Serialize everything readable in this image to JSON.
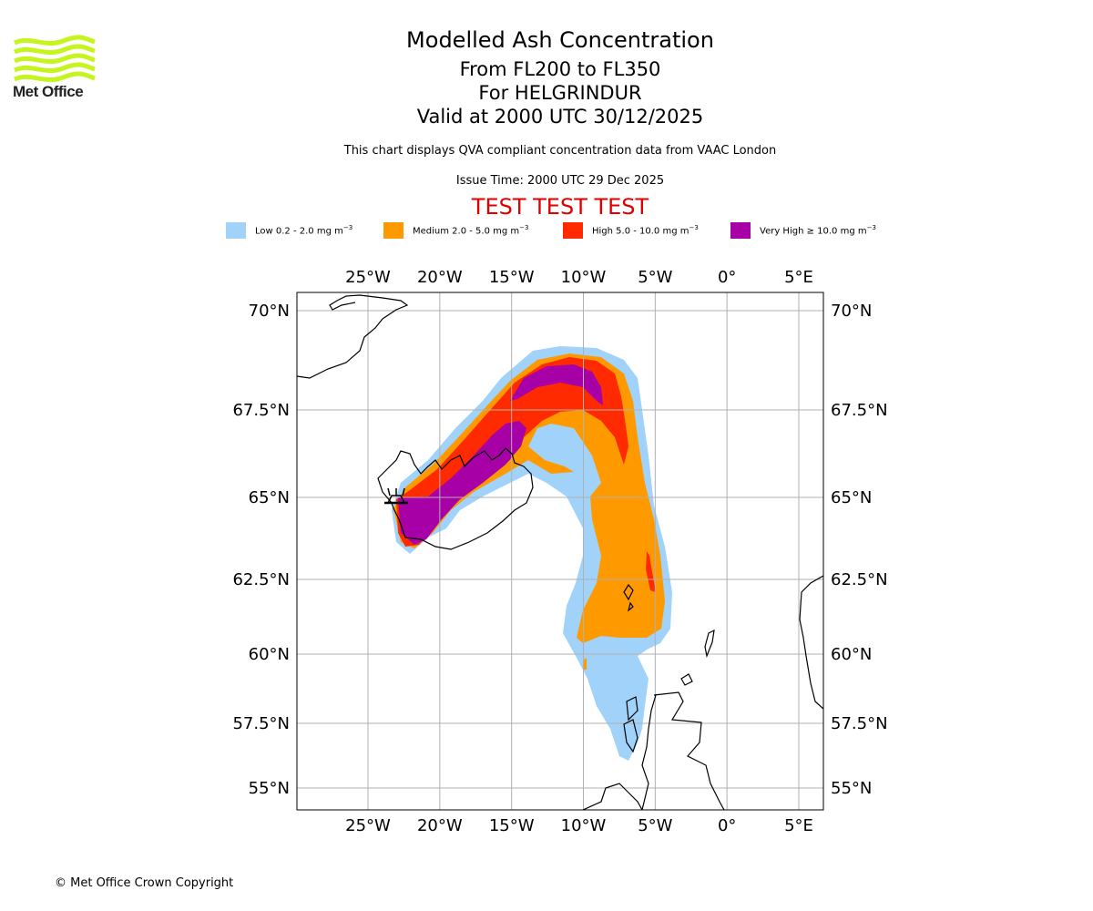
{
  "branding": {
    "logo_text": "Met Office",
    "logo_color": "#c6f51e"
  },
  "header": {
    "title": "Modelled Ash Concentration",
    "levels": "From FL200 to FL350",
    "volcano": "For HELGRINDUR",
    "valid": "Valid at 2000 UTC 30/12/2025",
    "subtitle": "This chart displays QVA compliant concentration data from VAAC London",
    "issue_time": "Issue Time: 2000 UTC 29 Dec 2025",
    "test_banner": "TEST TEST TEST",
    "test_color": "#e00000"
  },
  "legend": [
    {
      "label": "Low 0.2 - 2.0 mg m",
      "exp": "−3",
      "color": "#a0d2fa"
    },
    {
      "label": "Medium 2.0 - 5.0 mg m",
      "exp": "−3",
      "color": "#ff9900"
    },
    {
      "label": "High 5.0 - 10.0 mg m",
      "exp": "−3",
      "color": "#ff2a00"
    },
    {
      "label": "Very High ≥ 10.0 mg m",
      "exp": "−3",
      "color": "#a600a6"
    }
  ],
  "map": {
    "lon_ticks": [
      "25°W",
      "20°W",
      "15°W",
      "10°W",
      "5°W",
      "0°",
      "5°E"
    ],
    "lat_ticks": [
      "70°N",
      "67.5°N",
      "65°N",
      "62.5°N",
      "60°N",
      "57.5°N",
      "55°N"
    ],
    "lon_values": [
      -25,
      -20,
      -15,
      -10,
      -5,
      0,
      5
    ],
    "lat_values": [
      70,
      67.5,
      65,
      62.5,
      60,
      57.5,
      55
    ],
    "grid_color": "#b0b0b0",
    "coast_color": "#000000",
    "volcano_marker": "volcano-icon"
  },
  "footer": {
    "copyright": "© Met Office Crown Copyright"
  }
}
